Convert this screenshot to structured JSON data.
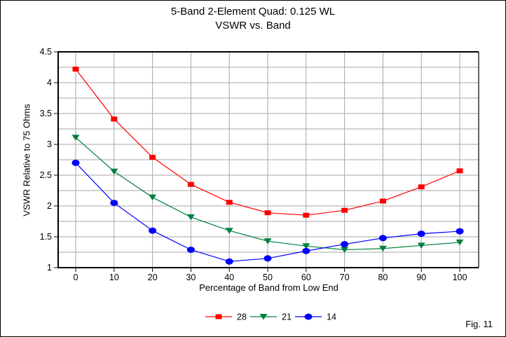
{
  "title": {
    "line1": "5-Band 2-Element Quad: 0.125 WL",
    "line2": "VSWR vs. Band"
  },
  "fig_label": "Fig. 11",
  "chart_data": {
    "type": "line",
    "title": "5-Band 2-Element Quad: 0.125 WL",
    "subtitle": "VSWR vs. Band",
    "xlabel": "Percentage of Band from Low End",
    "ylabel": "VSWR Relative to 75 Ohms",
    "x": [
      0,
      10,
      20,
      30,
      40,
      50,
      60,
      70,
      80,
      90,
      100
    ],
    "series": [
      {
        "name": "28",
        "color": "#ff0000",
        "marker": "square",
        "values": [
          4.22,
          3.41,
          2.79,
          2.35,
          2.06,
          1.89,
          1.85,
          1.93,
          2.08,
          2.31,
          2.57
        ]
      },
      {
        "name": "21",
        "color": "#008040",
        "marker": "triangle-down",
        "values": [
          3.11,
          2.56,
          2.14,
          1.82,
          1.6,
          1.43,
          1.35,
          1.29,
          1.31,
          1.36,
          1.41
        ]
      },
      {
        "name": "14",
        "color": "#0000ff",
        "marker": "circle",
        "values": [
          2.7,
          2.05,
          1.6,
          1.29,
          1.1,
          1.15,
          1.27,
          1.38,
          1.48,
          1.55,
          1.59
        ]
      }
    ],
    "xlim": [
      0,
      100
    ],
    "ylim": [
      1,
      4.5
    ],
    "x_ticks": [
      0,
      10,
      20,
      30,
      40,
      50,
      60,
      70,
      80,
      90,
      100
    ],
    "y_ticks": [
      1,
      1.5,
      2,
      2.5,
      3,
      3.5,
      4,
      4.5
    ],
    "y_grid_step": 0.25,
    "grid": true,
    "grid_color": "#a6a6a6",
    "axis_color": "#000000",
    "legend_position": "bottom",
    "background_color": "#ffffff"
  }
}
